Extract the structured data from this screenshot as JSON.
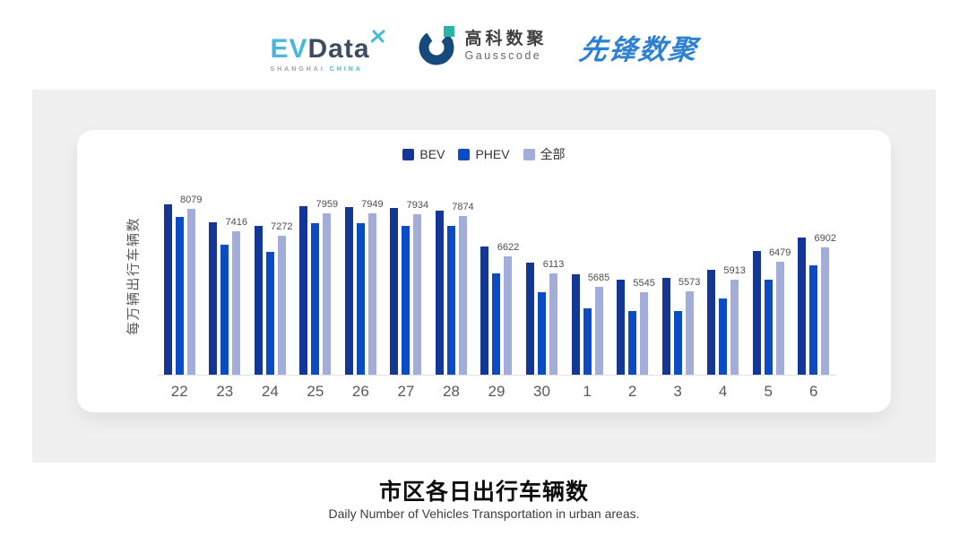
{
  "header": {
    "evdata_logo": {
      "ev": "EV",
      "data": "Data",
      "sub_left": "SHANGHAI",
      "sub_right": "CHINA",
      "ev_color": "#45b8dc",
      "data_color": "#3d4d5f"
    },
    "gausscode_logo": {
      "cn": "高科数聚",
      "en": "Gausscode",
      "mark_navy": "#174a7c",
      "mark_teal": "#28b5a5"
    },
    "pioneer_logo": {
      "text": "先锋数聚",
      "color": "#2e80d2"
    },
    "icons": {
      "evdata_star": "x-cross-propeller",
      "gausscode_mark": "g-ring"
    }
  },
  "chart_data": {
    "type": "bar",
    "categories": [
      "22",
      "23",
      "24",
      "25",
      "26",
      "27",
      "28",
      "29",
      "30",
      "1",
      "2",
      "3",
      "4",
      "5",
      "6"
    ],
    "series": [
      {
        "name": "BEV",
        "color": "#143795",
        "values": [
          8220,
          7680,
          7570,
          8170,
          8150,
          8130,
          8040,
          6940,
          6450,
          6090,
          5920,
          5960,
          6220,
          6790,
          7210
        ]
      },
      {
        "name": "PHEV",
        "color": "#0a4cc4",
        "values": [
          7850,
          6980,
          6780,
          7660,
          7640,
          7580,
          7570,
          6110,
          5520,
          5050,
          4950,
          4960,
          5350,
          5920,
          6360
        ]
      },
      {
        "name": "全部",
        "color": "#a3add9",
        "values": [
          8079,
          7416,
          7272,
          7959,
          7949,
          7934,
          7874,
          6622,
          6113,
          5685,
          5545,
          5573,
          5913,
          6479,
          6902
        ]
      }
    ],
    "data_labels": {
      "series": "全部",
      "values": [
        8079,
        7416,
        7272,
        7959,
        7949,
        7934,
        7874,
        6622,
        6113,
        5685,
        5545,
        5573,
        5913,
        6479,
        6902
      ]
    },
    "title": "市区各日出行车辆数",
    "xlabel": "",
    "ylabel": "每万辆出行车辆数",
    "ylim": [
      3000,
      9000
    ],
    "grid": false,
    "legend_position": "top",
    "axis_line_color": "#e1e1e1"
  },
  "footer": {
    "title": "市区各日出行车辆数",
    "subtitle": "Daily Number of Vehicles Transportation in urban areas."
  }
}
